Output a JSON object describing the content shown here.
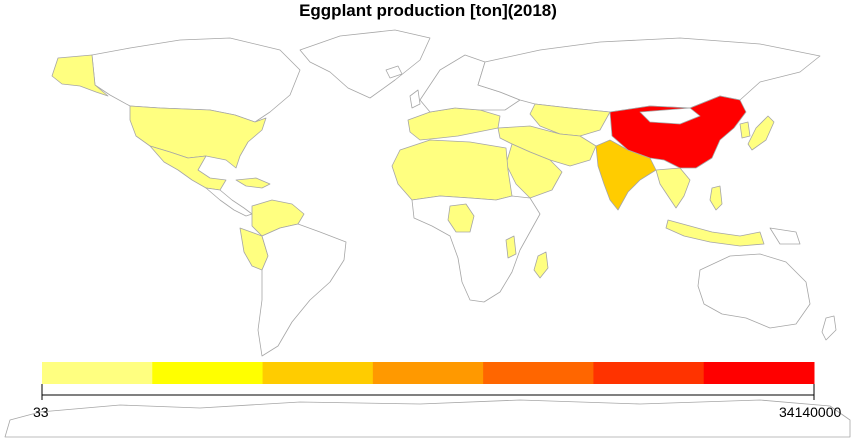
{
  "title": "Eggplant production [ton](2018)",
  "colors": {
    "background": "#ffffff",
    "no_data": "#ffffff",
    "border": "#a6a6a6",
    "scale": [
      "#ffff80",
      "#ffff00",
      "#ffcc00",
      "#ff9900",
      "#ff6600",
      "#ff3300",
      "#ff0000"
    ]
  },
  "legend": {
    "min_label": "33",
    "max_label": "34140000",
    "min_value": 33,
    "max_value": 34140000,
    "classes": 7
  },
  "countries": [
    {
      "name": "China",
      "class": 7
    },
    {
      "name": "India",
      "class": 3
    },
    {
      "name": "Egypt",
      "class": 1
    },
    {
      "name": "Turkey",
      "class": 1
    },
    {
      "name": "Iran",
      "class": 1
    },
    {
      "name": "Indonesia",
      "class": 1
    },
    {
      "name": "Japan",
      "class": 1
    },
    {
      "name": "Philippines",
      "class": 1
    },
    {
      "name": "Italy",
      "class": 1
    },
    {
      "name": "Spain",
      "class": 1
    },
    {
      "name": "United States",
      "class": 1
    },
    {
      "name": "Mexico",
      "class": 1
    }
  ]
}
